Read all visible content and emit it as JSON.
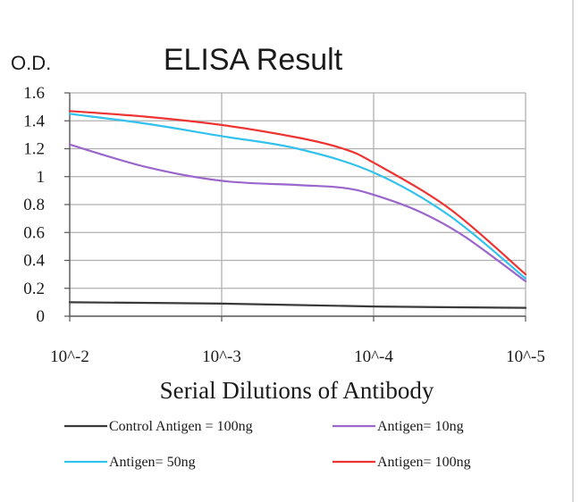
{
  "chart_data": {
    "type": "line",
    "title": "ELISA Result",
    "ylabel": "O.D.",
    "xlabel": "Serial Dilutions of Antibody",
    "x_ticks": [
      "10^-2",
      "10^-3",
      "10^-4",
      "10^-5"
    ],
    "y_ticks": [
      "0",
      "0.2",
      "0.4",
      "0.6",
      "0.8",
      "1",
      "1.2",
      "1.4",
      "1.6"
    ],
    "ylim": [
      0,
      1.6
    ],
    "x_scale": "log10",
    "grid": true,
    "legend_position": "bottom",
    "series": [
      {
        "name": "Control Antigen = 100ng",
        "color": "#3a3a3a",
        "points": [
          [
            -2,
            0.1
          ],
          [
            -3,
            0.09
          ],
          [
            -4,
            0.07
          ],
          [
            -5,
            0.06
          ]
        ]
      },
      {
        "name": "Antigen= 10ng",
        "color": "#9a66cc",
        "points": [
          [
            -2,
            1.23
          ],
          [
            -2.5,
            1.07
          ],
          [
            -3,
            0.97
          ],
          [
            -3.5,
            0.94
          ],
          [
            -3.8,
            0.92
          ],
          [
            -4,
            0.87
          ],
          [
            -4.3,
            0.75
          ],
          [
            -4.6,
            0.57
          ],
          [
            -5,
            0.25
          ]
        ]
      },
      {
        "name": "Antigen= 50ng",
        "color": "#33c1ee",
        "points": [
          [
            -2,
            1.45
          ],
          [
            -2.5,
            1.38
          ],
          [
            -3,
            1.29
          ],
          [
            -3.5,
            1.2
          ],
          [
            -4,
            1.03
          ],
          [
            -4.5,
            0.72
          ],
          [
            -5,
            0.27
          ]
        ]
      },
      {
        "name": "Antigen= 100ng",
        "color": "#ee3333",
        "points": [
          [
            -2,
            1.47
          ],
          [
            -2.5,
            1.43
          ],
          [
            -3,
            1.37
          ],
          [
            -3.5,
            1.28
          ],
          [
            -3.8,
            1.2
          ],
          [
            -4,
            1.1
          ],
          [
            -4.5,
            0.77
          ],
          [
            -5,
            0.3
          ]
        ]
      }
    ]
  }
}
